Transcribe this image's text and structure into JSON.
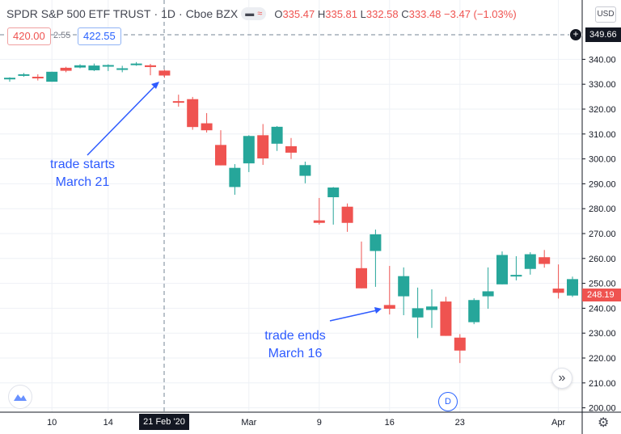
{
  "header": {
    "symbol": "SPDR S&P 500 ETF TRUST",
    "interval": "1D",
    "exchange": "Cboe BZX",
    "ohlc": {
      "o_label": "O",
      "o": "335.47",
      "h_label": "H",
      "h": "335.81",
      "l_label": "L",
      "l": "332.58",
      "c_label": "C",
      "c": "333.48",
      "change": "−3.47 (−1.03%)"
    },
    "sell_price": "420.00",
    "spread": "2.55",
    "buy_price": "422.55",
    "currency": "USD"
  },
  "crosshair": {
    "price": "349.66",
    "date": "21 Feb '20"
  },
  "last_price": "248.19",
  "annotations": {
    "start_line1": "trade starts",
    "start_line2": "March 21",
    "end_line1": "trade ends",
    "end_line2": "March 16"
  },
  "buttons": {
    "scroll_label": "»",
    "d_badge": "D"
  },
  "colors": {
    "up": "#26a69a",
    "down": "#ef5350",
    "annotation": "#2e5bff",
    "grid": "#eef1f6"
  },
  "chart_data": {
    "type": "candlestick",
    "y_ticks": [
      "340.00",
      "330.00",
      "320.00",
      "310.00",
      "300.00",
      "290.00",
      "280.00",
      "270.00",
      "260.00",
      "250.00",
      "240.00",
      "230.00",
      "220.00",
      "210.00",
      "200.00"
    ],
    "ylim": [
      200,
      340
    ],
    "x_ticks": [
      {
        "label": "10",
        "index": 3
      },
      {
        "label": "14",
        "index": 7
      },
      {
        "label": "Mar",
        "index": 17
      },
      {
        "label": "9",
        "index": 22
      },
      {
        "label": "16",
        "index": 27
      },
      {
        "label": "23",
        "index": 32
      },
      {
        "label": "Apr",
        "index": 39
      }
    ],
    "ohlc": [
      [
        332,
        332.8,
        331,
        332.6
      ],
      [
        333.8,
        334.5,
        333,
        334
      ],
      [
        333,
        334,
        331.5,
        332.5
      ],
      [
        331,
        335,
        331,
        335
      ],
      [
        336.6,
        337,
        334.8,
        335.4
      ],
      [
        336.7,
        338,
        336.4,
        337.6
      ],
      [
        335.6,
        338.3,
        335.3,
        337.5
      ],
      [
        337.4,
        338,
        335.3,
        337.7
      ],
      [
        336.1,
        337.4,
        334.8,
        336.4
      ],
      [
        337.9,
        338.9,
        337.4,
        338.3
      ],
      [
        337.6,
        338.2,
        333.6,
        336.9
      ],
      [
        335.47,
        335.81,
        332.58,
        333.48
      ],
      [
        323.2,
        325.8,
        321,
        322.7
      ],
      [
        324,
        324.9,
        311.7,
        312.8
      ],
      [
        314.3,
        318.4,
        310.6,
        311.5
      ],
      [
        305.6,
        311.5,
        297.4,
        297.4
      ],
      [
        288.7,
        297.9,
        285.6,
        296.4
      ],
      [
        298.2,
        309.5,
        294.7,
        309.2
      ],
      [
        309.5,
        314,
        297.6,
        300.2
      ],
      [
        306.1,
        313.2,
        303.2,
        312.9
      ],
      [
        305.1,
        308.4,
        300,
        302.5
      ],
      [
        293.2,
        298.9,
        290.2,
        297.5
      ],
      [
        275.3,
        284.3,
        273.6,
        274.3
      ],
      [
        284.6,
        288.7,
        273.6,
        288.5
      ],
      [
        280.8,
        282.1,
        270.7,
        274.3
      ],
      [
        256.1,
        266.8,
        248,
        248
      ],
      [
        263,
        271.6,
        248.6,
        269.7
      ],
      [
        241.3,
        257,
        237.5,
        239.8
      ],
      [
        244.8,
        256.4,
        237.2,
        252.9
      ],
      [
        236.3,
        248.3,
        228,
        240
      ],
      [
        239.3,
        247.6,
        232.1,
        240.7
      ],
      [
        242.7,
        244.6,
        228.9,
        228.9
      ],
      [
        228.2,
        229.6,
        218,
        223
      ],
      [
        234.4,
        244,
        233.6,
        243.3
      ],
      [
        244.8,
        256.4,
        239.8,
        246.8
      ],
      [
        249.6,
        262.8,
        249.6,
        261.4
      ],
      [
        253,
        260.9,
        251.2,
        253.4
      ],
      [
        255.8,
        262.5,
        253.5,
        261.7
      ],
      [
        260.5,
        263.4,
        256.3,
        257.8
      ],
      [
        247.9,
        257.6,
        243.9,
        246.2
      ],
      [
        245.1,
        252.7,
        244.5,
        251.7
      ]
    ]
  }
}
